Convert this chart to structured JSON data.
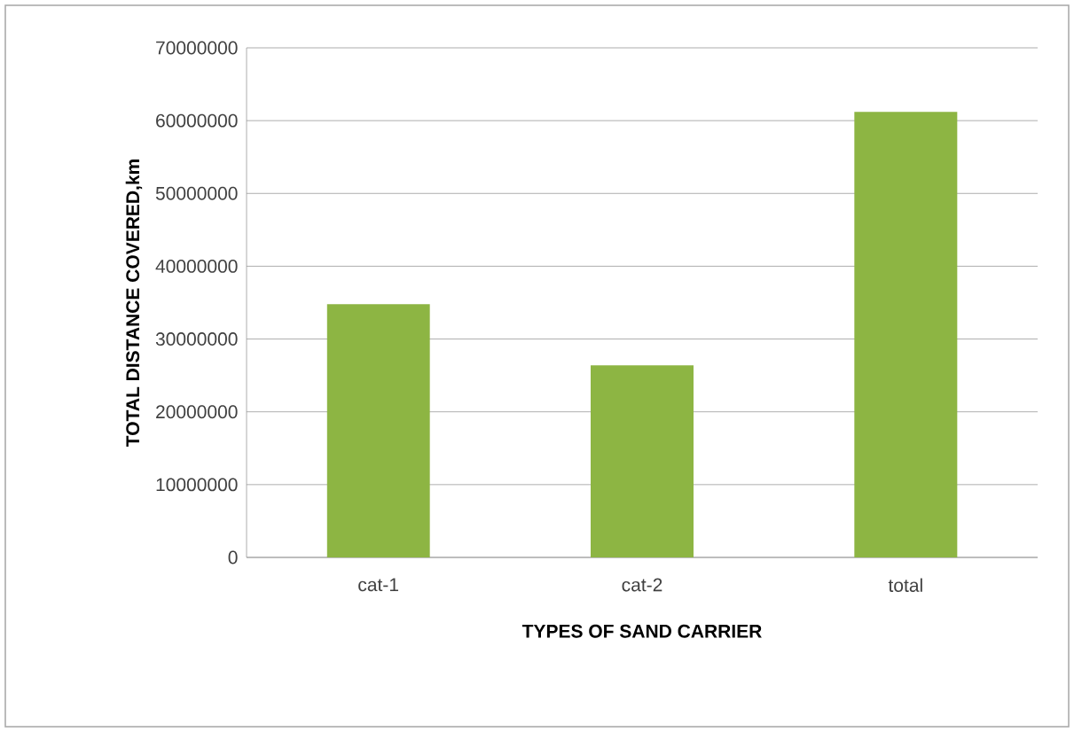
{
  "chart_data": {
    "type": "bar",
    "xlabel": "TYPES OF SAND CARRIER",
    "ylabel": "TOTAL DISTANCE COVERED,km",
    "categories": [
      "cat-1",
      "cat-2",
      "total"
    ],
    "values": [
      34800000,
      26400000,
      61200000
    ],
    "color": "#8db543",
    "ylim": [
      0,
      70000000
    ],
    "yticks": [
      0,
      10000000,
      20000000,
      30000000,
      40000000,
      50000000,
      60000000,
      70000000
    ],
    "grid": "y"
  }
}
